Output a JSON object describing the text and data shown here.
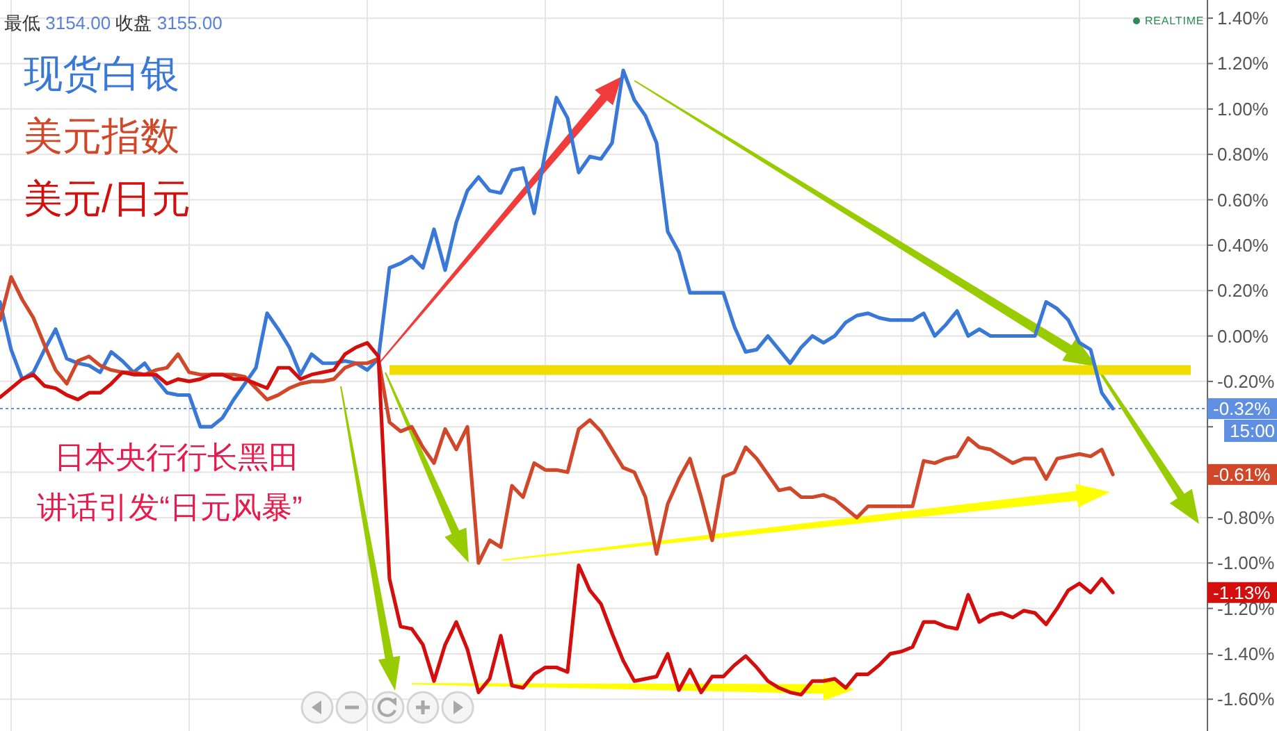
{
  "chart_data": {
    "type": "line",
    "subtitle": "最低 3154.00 收盘 3155.00",
    "annotations": [
      "日本央行行长黑田",
      "讲话引发“日元风暴”",
      "15:00",
      "REALTIME",
      "-0.61%",
      "-1.13%"
    ],
    "categories": [
      null,
      null,
      null,
      null,
      null,
      null,
      null,
      null,
      null,
      null,
      null,
      null,
      null,
      null,
      null,
      null,
      null,
      null,
      null,
      null,
      null,
      null,
      null,
      null,
      null,
      null,
      null,
      null,
      null,
      null,
      null,
      null,
      null,
      null,
      null,
      null,
      null,
      null,
      null,
      null,
      null,
      null,
      null,
      null,
      null,
      null,
      null,
      null,
      null,
      null,
      null,
      null,
      null,
      null,
      null,
      null,
      null,
      null,
      null,
      null,
      null,
      null,
      null,
      null,
      null,
      null,
      null,
      null,
      null,
      null,
      null,
      null,
      null,
      null,
      null,
      null,
      null,
      null,
      null,
      null,
      null,
      null,
      null,
      null,
      null,
      null,
      null,
      null,
      null,
      null,
      null,
      null,
      null,
      null,
      null,
      null,
      null,
      null,
      null,
      null,
      null,
      null,
      null,
      null,
      null,
      null,
      null,
      null,
      null
    ],
    "series": [
      {
        "color": "#f0dc00",
        "values": [
          null,
          null,
          null,
          null,
          null,
          null,
          null,
          null,
          null,
          null,
          null,
          null,
          null,
          null,
          null,
          null,
          null,
          null,
          null,
          null,
          null,
          null,
          null,
          null,
          null,
          null,
          null,
          null,
          null,
          null,
          null,
          null,
          null,
          null,
          null,
          -0.15,
          -0.15,
          -0.15,
          -0.15,
          -0.15,
          -0.15,
          -0.15,
          -0.15,
          -0.15,
          -0.15,
          -0.15,
          -0.15,
          -0.15,
          -0.15,
          -0.15,
          -0.15,
          -0.15,
          -0.15,
          -0.15,
          -0.15,
          -0.15,
          -0.15,
          -0.15,
          -0.15,
          -0.15,
          -0.15,
          -0.15,
          -0.15,
          -0.15,
          -0.15,
          -0.15,
          -0.15,
          -0.15,
          -0.15,
          -0.15,
          -0.15,
          -0.15,
          -0.15,
          -0.15,
          -0.15,
          -0.15,
          -0.15,
          -0.15,
          -0.15,
          -0.15,
          -0.15,
          -0.15,
          -0.15,
          -0.15,
          -0.15,
          -0.15,
          -0.15,
          -0.15,
          -0.15,
          -0.15,
          -0.15,
          -0.15,
          -0.15,
          -0.15,
          -0.15,
          -0.15,
          -0.15,
          -0.15,
          -0.15,
          -0.15,
          -0.15,
          -0.15,
          -0.15,
          -0.15,
          -0.15,
          -0.15,
          -0.15,
          -0.15,
          null
        ]
      },
      {
        "name": "现货白银",
        "color": "#3a78d8",
        "values": [
          0.15,
          -0.06,
          -0.19,
          -0.16,
          -0.06,
          0.03,
          -0.1,
          -0.12,
          -0.13,
          -0.16,
          -0.07,
          -0.11,
          -0.16,
          -0.12,
          -0.19,
          -0.25,
          -0.26,
          -0.26,
          -0.4,
          -0.4,
          -0.36,
          -0.28,
          -0.21,
          -0.14,
          0.1,
          0.03,
          -0.05,
          -0.17,
          -0.08,
          -0.12,
          -0.12,
          -0.11,
          -0.12,
          -0.15,
          -0.1,
          0.3,
          0.32,
          0.35,
          0.3,
          0.47,
          0.29,
          0.5,
          0.64,
          0.7,
          0.64,
          0.63,
          0.73,
          0.74,
          0.54,
          0.81,
          1.05,
          0.96,
          0.72,
          0.79,
          0.78,
          0.85,
          1.17,
          1.04,
          0.97,
          0.85,
          0.46,
          0.37,
          0.19,
          0.19,
          0.19,
          0.19,
          0.04,
          -0.07,
          -0.06,
          0.0,
          -0.06,
          -0.12,
          -0.05,
          0.0,
          -0.03,
          0.0,
          0.06,
          0.09,
          0.1,
          0.08,
          0.07,
          0.07,
          0.07,
          0.1,
          0.0,
          0.05,
          0.11,
          0.0,
          0.03,
          0.0,
          0.0,
          0.0,
          0.0,
          0.0,
          0.15,
          0.12,
          0.07,
          -0.03,
          -0.06,
          -0.25,
          -0.32,
          null,
          null,
          null,
          null,
          null,
          null,
          null,
          null
        ]
      },
      {
        "name": "美元指数",
        "color": "#d0472a",
        "values": [
          0.07,
          0.26,
          0.16,
          0.08,
          -0.04,
          -0.15,
          -0.21,
          -0.11,
          -0.09,
          -0.13,
          -0.15,
          -0.16,
          -0.16,
          -0.17,
          -0.15,
          -0.14,
          -0.08,
          -0.16,
          -0.17,
          -0.17,
          -0.17,
          -0.17,
          -0.18,
          -0.23,
          -0.28,
          -0.26,
          -0.23,
          -0.21,
          -0.2,
          -0.2,
          -0.19,
          -0.14,
          -0.12,
          -0.12,
          -0.1,
          -0.38,
          -0.42,
          -0.4,
          -0.49,
          -0.56,
          -0.41,
          -0.5,
          -0.4,
          -1.0,
          -0.9,
          -0.93,
          -0.66,
          -0.71,
          -0.56,
          -0.59,
          -0.59,
          -0.6,
          -0.41,
          -0.37,
          -0.42,
          -0.5,
          -0.58,
          -0.6,
          -0.71,
          -0.96,
          -0.74,
          -0.63,
          -0.54,
          -0.71,
          -0.9,
          -0.62,
          -0.6,
          -0.49,
          -0.54,
          -0.61,
          -0.68,
          -0.67,
          -0.71,
          -0.71,
          -0.7,
          -0.72,
          -0.76,
          -0.8,
          -0.75,
          -0.75,
          -0.75,
          -0.75,
          -0.75,
          -0.55,
          -0.56,
          -0.54,
          -0.53,
          -0.45,
          -0.49,
          -0.5,
          -0.53,
          -0.56,
          -0.54,
          -0.54,
          -0.63,
          -0.54,
          -0.53,
          -0.52,
          -0.53,
          -0.5,
          -0.61,
          null,
          null,
          null,
          null,
          null,
          null,
          null,
          null
        ]
      },
      {
        "name": "美元/日元",
        "color": "#d40d0d",
        "values": [
          -0.27,
          -0.23,
          -0.19,
          -0.17,
          -0.22,
          -0.23,
          -0.26,
          -0.28,
          -0.25,
          -0.25,
          -0.21,
          -0.16,
          -0.17,
          -0.17,
          -0.17,
          -0.21,
          -0.19,
          -0.2,
          -0.19,
          -0.17,
          -0.17,
          -0.19,
          -0.19,
          -0.21,
          -0.23,
          -0.14,
          -0.14,
          -0.19,
          -0.17,
          -0.16,
          -0.15,
          -0.08,
          -0.05,
          -0.03,
          -0.09,
          -1.07,
          -1.28,
          -1.29,
          -1.36,
          -1.52,
          -1.36,
          -1.26,
          -1.38,
          -1.57,
          -1.51,
          -1.32,
          -1.54,
          -1.55,
          -1.49,
          -1.46,
          -1.46,
          -1.48,
          -1.01,
          -1.12,
          -1.18,
          -1.31,
          -1.43,
          -1.52,
          -1.51,
          -1.5,
          -1.4,
          -1.56,
          -1.47,
          -1.57,
          -1.5,
          -1.5,
          -1.45,
          -1.41,
          -1.46,
          -1.52,
          -1.55,
          -1.57,
          -1.58,
          -1.52,
          -1.52,
          -1.51,
          -1.55,
          -1.49,
          -1.49,
          -1.45,
          -1.4,
          -1.39,
          -1.37,
          -1.26,
          -1.26,
          -1.28,
          -1.29,
          -1.14,
          -1.26,
          -1.23,
          -1.22,
          -1.24,
          -1.21,
          -1.22,
          -1.27,
          -1.2,
          -1.12,
          -1.09,
          -1.13,
          -1.07,
          -1.13,
          null,
          null,
          null,
          null,
          null,
          null,
          null,
          null
        ]
      }
    ],
    "ylim": [
      -1.74,
      1.48
    ],
    "yticks": [
      {
        "value": 1.4,
        "label": "1.40%"
      },
      {
        "value": 1.2,
        "label": "1.20%"
      },
      {
        "value": 1.0,
        "label": "1.00%"
      },
      {
        "value": 0.8,
        "label": "0.80%"
      },
      {
        "value": 0.6,
        "label": "0.60%"
      },
      {
        "value": 0.4,
        "label": "0.40%"
      },
      {
        "value": 0.2,
        "label": "0.20%"
      },
      {
        "value": 0,
        "label": "0.00%"
      },
      {
        "value": -0.2,
        "label": "-0.20%"
      },
      {
        "value": -0.4,
        "label": null
      },
      {
        "value": -0.6,
        "label": null
      },
      {
        "value": -0.8,
        "label": "-0.80%"
      },
      {
        "value": -1.0,
        "label": "-1.00%"
      },
      {
        "value": -1.2,
        "label": "-1.20%"
      },
      {
        "value": -1.4,
        "label": "-1.40%"
      },
      {
        "value": -1.6,
        "label": "-1.60%"
      }
    ],
    "ref_lines": [
      {
        "axis": "y",
        "value": -0.32,
        "label": "-0.32%",
        "color": "#5f8fe3",
        "line_style": "dotted"
      }
    ],
    "grid": true,
    "legend": "top left",
    "tick_labels": "y"
  }
}
